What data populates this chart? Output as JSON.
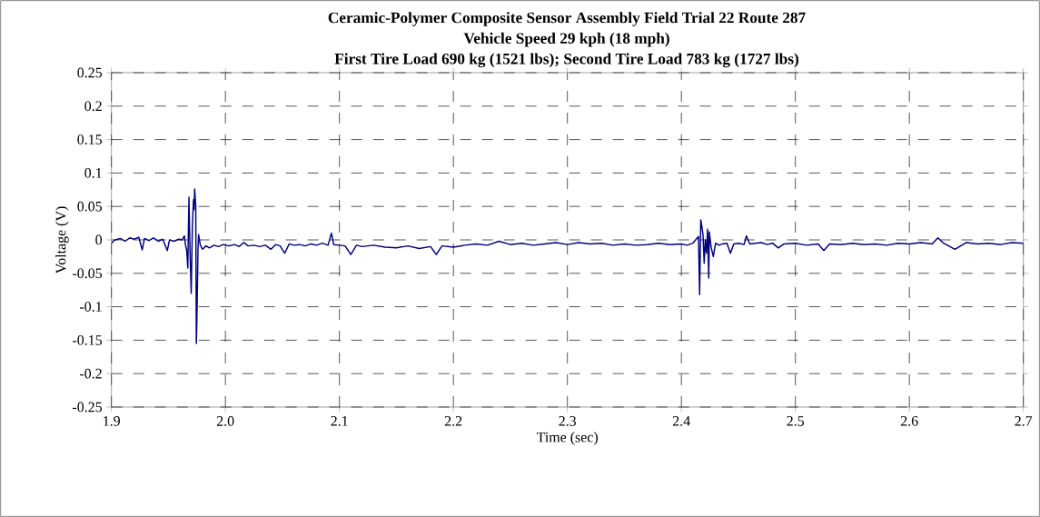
{
  "chart_data": {
    "type": "line",
    "title": "Ceramic-Polymer Composite Sensor Assembly Field Trial 22 Route 287",
    "subtitle": "Vehicle Speed 29 kph (18 mph)",
    "annotations": [
      "First Tire Load 690 kg (1521 lbs); Second Tire Load 783 kg (1727 lbs)"
    ],
    "xlabel": "Time (sec)",
    "ylabel": "Voltage (V)",
    "xlim": [
      1.9,
      2.7
    ],
    "ylim": [
      -0.25,
      0.25
    ],
    "xticks": [
      {
        "value": 1.9,
        "label": "1.9"
      },
      {
        "value": 2.0,
        "label": "2.0"
      },
      {
        "value": 2.1,
        "label": "2.1"
      },
      {
        "value": 2.2,
        "label": "2.2"
      },
      {
        "value": 2.3,
        "label": "2.3"
      },
      {
        "value": 2.4,
        "label": "2.4"
      },
      {
        "value": 2.5,
        "label": "2.5"
      },
      {
        "value": 2.6,
        "label": "2.6"
      },
      {
        "value": 2.7,
        "label": "2.7"
      }
    ],
    "yticks": [
      -0.25,
      -0.2,
      -0.15,
      -0.1,
      -0.05,
      0,
      0.05,
      0.1,
      0.15,
      0.2,
      0.25
    ],
    "grid": true,
    "marker": "none",
    "line_style": "solid",
    "series": [
      {
        "color": "#000080",
        "x": [
          1.9,
          1.903,
          1.908,
          1.912,
          1.916,
          1.92,
          1.924,
          1.927,
          1.929,
          1.933,
          1.937,
          1.941,
          1.945,
          1.949,
          1.951,
          1.955,
          1.959,
          1.962,
          1.964,
          1.965,
          1.966,
          1.967,
          1.968,
          1.969,
          1.97,
          1.971,
          1.972,
          1.9725,
          1.973,
          1.974,
          1.9745,
          1.975,
          1.976,
          1.9765,
          1.978,
          1.98,
          1.983,
          1.986,
          1.99,
          1.994,
          1.998,
          2.003,
          2.008,
          2.012,
          2.016,
          2.02,
          2.025,
          2.03,
          2.035,
          2.04,
          2.044,
          2.048,
          2.052,
          2.056,
          2.06,
          2.065,
          2.07,
          2.075,
          2.08,
          2.085,
          2.09,
          2.093,
          2.095,
          2.1,
          2.105,
          2.11,
          2.115,
          2.12,
          2.13,
          2.14,
          2.15,
          2.16,
          2.17,
          2.18,
          2.185,
          2.19,
          2.2,
          2.21,
          2.22,
          2.23,
          2.24,
          2.25,
          2.26,
          2.27,
          2.28,
          2.29,
          2.3,
          2.31,
          2.32,
          2.33,
          2.34,
          2.35,
          2.36,
          2.37,
          2.38,
          2.39,
          2.4,
          2.405,
          2.41,
          2.415,
          2.416,
          2.417,
          2.418,
          2.419,
          2.42,
          2.421,
          2.422,
          2.423,
          2.424,
          2.4245,
          2.426,
          2.428,
          2.43,
          2.433,
          2.436,
          2.44,
          2.443,
          2.446,
          2.45,
          2.455,
          2.457,
          2.46,
          2.47,
          2.475,
          2.48,
          2.485,
          2.49,
          2.5,
          2.51,
          2.52,
          2.525,
          2.53,
          2.54,
          2.55,
          2.56,
          2.57,
          2.58,
          2.59,
          2.6,
          2.61,
          2.62,
          2.625,
          2.63,
          2.64,
          2.65,
          2.66,
          2.67,
          2.68,
          2.69,
          2.7
        ],
        "values": [
          -0.005,
          0.0,
          0.002,
          -0.002,
          0.003,
          0.001,
          0.004,
          -0.015,
          0.002,
          -0.001,
          0.003,
          -0.002,
          0.001,
          -0.016,
          0.0,
          -0.002,
          0.001,
          0.0,
          0.006,
          -0.008,
          -0.015,
          -0.042,
          0.064,
          -0.02,
          -0.08,
          0.02,
          0.06,
          0.045,
          0.076,
          0.05,
          -0.155,
          -0.12,
          -0.01,
          0.008,
          -0.008,
          -0.014,
          -0.009,
          -0.012,
          -0.008,
          -0.01,
          -0.007,
          -0.009,
          -0.007,
          -0.01,
          -0.004,
          -0.009,
          -0.008,
          -0.01,
          -0.008,
          -0.014,
          -0.007,
          -0.009,
          -0.02,
          -0.006,
          -0.008,
          -0.007,
          -0.009,
          -0.006,
          -0.008,
          -0.005,
          -0.008,
          0.01,
          -0.007,
          -0.008,
          -0.009,
          -0.022,
          -0.008,
          -0.01,
          -0.008,
          -0.011,
          -0.012,
          -0.009,
          -0.013,
          -0.01,
          -0.022,
          -0.009,
          -0.011,
          -0.008,
          -0.006,
          -0.008,
          -0.002,
          -0.007,
          -0.005,
          -0.008,
          -0.006,
          -0.004,
          -0.007,
          -0.004,
          -0.006,
          -0.005,
          -0.008,
          -0.006,
          -0.008,
          -0.007,
          -0.005,
          -0.007,
          -0.006,
          -0.008,
          -0.005,
          0.005,
          -0.082,
          0.03,
          0.02,
          0.007,
          -0.035,
          0.0,
          -0.02,
          0.016,
          -0.057,
          0.012,
          -0.01,
          -0.025,
          -0.005,
          -0.008,
          -0.006,
          -0.005,
          -0.02,
          -0.006,
          -0.005,
          -0.007,
          0.006,
          -0.006,
          -0.004,
          -0.007,
          -0.005,
          -0.012,
          -0.006,
          -0.005,
          -0.008,
          -0.006,
          -0.016,
          -0.006,
          -0.007,
          -0.005,
          -0.007,
          -0.006,
          -0.008,
          -0.005,
          -0.006,
          -0.004,
          -0.006,
          0.003,
          -0.005,
          -0.014,
          -0.004,
          -0.006,
          -0.005,
          -0.007,
          -0.004,
          -0.005
        ]
      }
    ]
  }
}
